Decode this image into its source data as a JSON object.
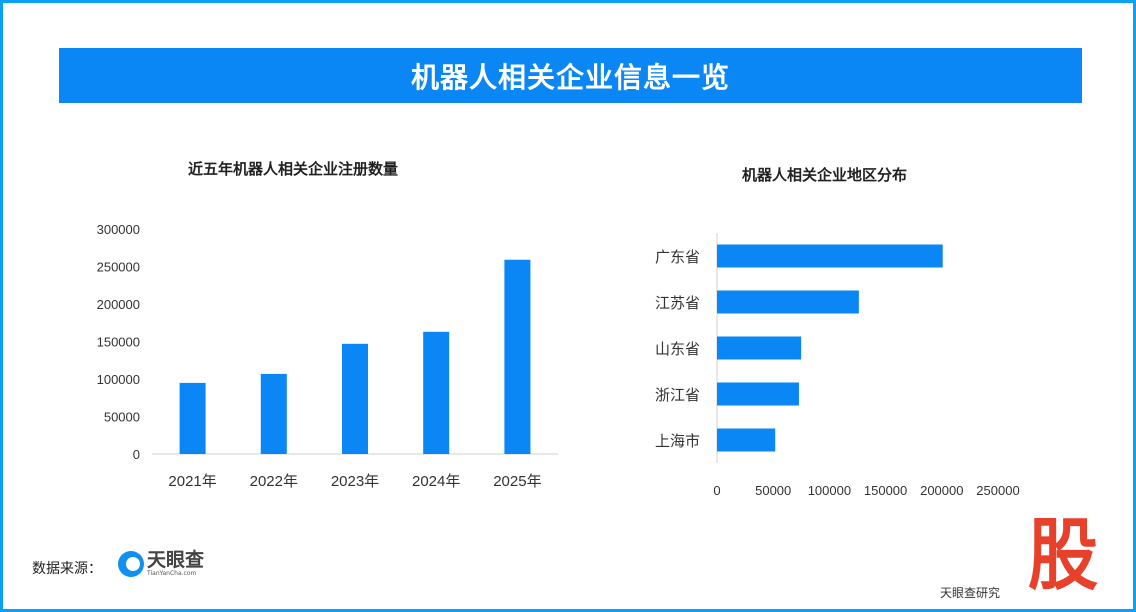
{
  "title": "机器人相关企业信息一览",
  "source_label": "数据来源：",
  "logo": {
    "name": "天眼查",
    "sub": "TianYanCha.com"
  },
  "watermark": {
    "char": "股",
    "sub": "天眼查研究"
  },
  "colors": {
    "bar": "#0a86f5",
    "border": "#0aa0f5"
  },
  "chart_data": [
    {
      "type": "bar",
      "title": "近五年机器人相关企业注册数量",
      "categories": [
        "2021年",
        "2022年",
        "2023年",
        "2024年",
        "2025年"
      ],
      "values": [
        94800,
        106800,
        146900,
        162900,
        259000
      ],
      "ylim": [
        0,
        300000
      ],
      "yticks": [
        "0",
        "50000",
        "100000",
        "150000",
        "200000",
        "250000",
        "300000"
      ],
      "grid": false
    },
    {
      "type": "bar",
      "orientation": "horizontal",
      "title": "机器人相关企业地区分布",
      "categories": [
        "广东省",
        "江苏省",
        "山东省",
        "浙江省",
        "上海市"
      ],
      "values": [
        200800,
        126200,
        74900,
        72900,
        51800
      ],
      "xlim": [
        0,
        250000
      ],
      "xticks": [
        "0",
        "50000",
        "100000",
        "150000",
        "200000",
        "250000"
      ],
      "grid": false
    }
  ]
}
